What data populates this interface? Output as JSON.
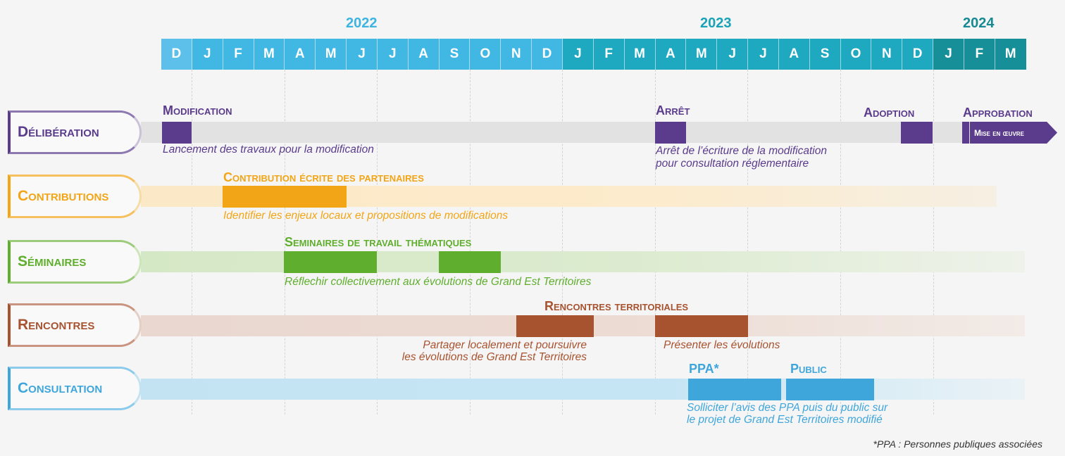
{
  "years": [
    "2022",
    "2023",
    "2024"
  ],
  "months": [
    "D",
    "J",
    "F",
    "M",
    "A",
    "M",
    "J",
    "J",
    "A",
    "S",
    "O",
    "N",
    "D",
    "J",
    "F",
    "M",
    "A",
    "M",
    "J",
    "J",
    "A",
    "S",
    "O",
    "N",
    "D",
    "J",
    "F",
    "M"
  ],
  "colors": {
    "purple": "#5a3b8c",
    "orange": "#f2a516",
    "green": "#5fae2d",
    "brown": "#a85330",
    "blue": "#3fa6dc"
  },
  "rows": {
    "deliberation": {
      "label": "Délibération",
      "modification_title": "Modification",
      "modification_desc": "Lancement des travaux pour la modification",
      "arret_title": "Arrêt",
      "arret_desc_1": "Arrêt de l’écriture de la modification",
      "arret_desc_2": "pour consultation réglementaire",
      "adoption_title": "Adoption",
      "approbation_title": "Approbation",
      "mise_en_oeuvre": "Mise en œuvre"
    },
    "contributions": {
      "label": "Contributions",
      "title": "Contribution écrite des partenaires",
      "desc": "Identifier les enjeux locaux et propositions de modifications"
    },
    "seminaires": {
      "label": "Séminaires",
      "title": "Seminaires de travail thématiques",
      "desc": "Réflechir collectivement aux évolutions de Grand Est Territoires"
    },
    "rencontres": {
      "label": "Rencontres",
      "title": "Rencontres territoriales",
      "desc_left_1": "Partager localement et poursuivre",
      "desc_left_2": "les évolutions de Grand Est Territoires",
      "desc_right": "Présenter les évolutions"
    },
    "consultation": {
      "label": "Consultation",
      "ppa_title": "PPA*",
      "public_title": "Public",
      "desc_1": "Solliciter l’avis des PPA puis du public sur",
      "desc_2": "le projet de Grand Est Territoires modifié"
    }
  },
  "footnote": "*PPA : Personnes publiques associées"
}
